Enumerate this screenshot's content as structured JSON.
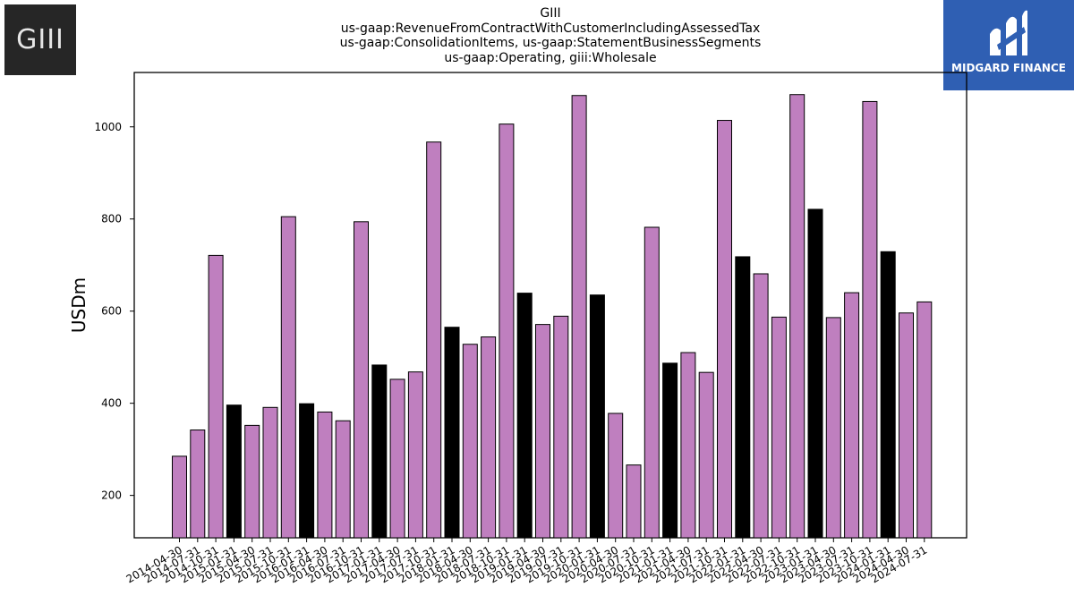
{
  "logos": {
    "left_text": "GIII",
    "right_text": "MIDGARD FINANCE",
    "right_bg": "#2f5fb3"
  },
  "chart_data": {
    "type": "bar",
    "title_lines": [
      "GIII",
      "us-gaap:RevenueFromContractWithCustomerIncludingAssessedTax",
      "us-gaap:ConsolidationItems, us-gaap:StatementBusinessSegments",
      "us-gaap:Operating, giii:Wholesale"
    ],
    "ylabel": "USDm",
    "xlabel": "",
    "ylim": [
      108,
      1118
    ],
    "yticks": [
      200,
      400,
      600,
      800,
      1000
    ],
    "grid": false,
    "colors": {
      "normal": "#bf7fbf",
      "highlight": "#000000"
    },
    "categories": [
      "2014-04-30",
      "2014-07-31",
      "2014-10-31",
      "2015-01-31",
      "2015-04-30",
      "2015-07-31",
      "2015-10-31",
      "2016-01-31",
      "2016-04-30",
      "2016-07-31",
      "2016-10-31",
      "2017-01-31",
      "2017-04-30",
      "2017-07-31",
      "2017-10-31",
      "2018-01-31",
      "2018-04-30",
      "2018-07-31",
      "2018-10-31",
      "2019-01-31",
      "2019-04-30",
      "2019-07-31",
      "2019-10-31",
      "2020-01-31",
      "2020-04-30",
      "2020-07-31",
      "2020-10-31",
      "2021-01-31",
      "2021-04-30",
      "2021-07-31",
      "2021-10-31",
      "2022-01-31",
      "2022-04-30",
      "2022-07-31",
      "2022-10-31",
      "2023-01-31",
      "2023-04-30",
      "2023-07-31",
      "2023-10-31",
      "2024-01-31",
      "2024-04-30",
      "2024-07-31"
    ],
    "values": [
      285,
      342,
      721,
      396,
      352,
      391,
      805,
      399,
      381,
      362,
      794,
      483,
      452,
      468,
      967,
      565,
      528,
      544,
      1006,
      639,
      571,
      589,
      1068,
      635,
      378,
      266,
      782,
      487,
      510,
      467,
      1014,
      718,
      681,
      587,
      1070,
      821,
      586,
      640,
      1055,
      729,
      596,
      620
    ],
    "highlight": [
      false,
      false,
      false,
      true,
      false,
      false,
      false,
      true,
      false,
      false,
      false,
      true,
      false,
      false,
      false,
      true,
      false,
      false,
      false,
      true,
      false,
      false,
      false,
      true,
      false,
      false,
      false,
      true,
      false,
      false,
      false,
      true,
      false,
      false,
      false,
      true,
      false,
      false,
      false,
      true,
      false,
      false
    ]
  }
}
